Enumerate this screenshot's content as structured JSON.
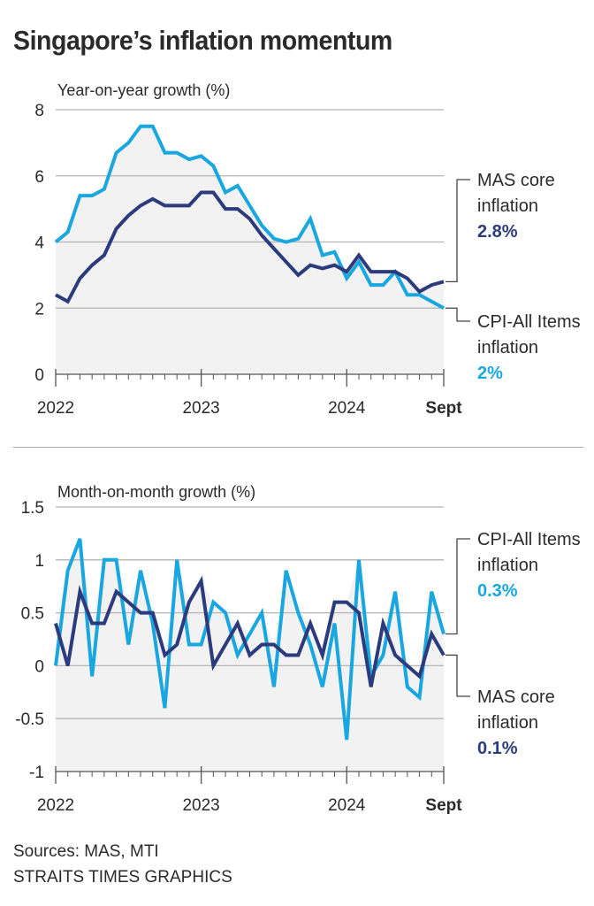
{
  "title": "Singapore’s inflation momentum",
  "colors": {
    "cpi": "#1aa7e0",
    "core": "#2c3b7c",
    "fill": "#f2f2f2",
    "grid": "#b5b5b5",
    "axis": "#555555"
  },
  "sources": {
    "line1": "Sources: MAS, MTI",
    "line2": "STRAITS TIMES GRAPHICS"
  },
  "chart_data": [
    {
      "type": "line",
      "title": "Year-on-year growth (%)",
      "ylabel": "Year-on-year growth (%)",
      "xlabel": "",
      "x_range": [
        "2022-01",
        "2024-09"
      ],
      "ylim": [
        0,
        8
      ],
      "yticks": [
        0,
        2,
        4,
        6,
        8
      ],
      "yticks_labels": [
        "0",
        "2",
        "4",
        "6",
        "8"
      ],
      "xtick_labels": [
        {
          "label": "2022",
          "month_index": 0,
          "bold": false
        },
        {
          "label": "2023",
          "month_index": 12,
          "bold": false
        },
        {
          "label": "2024",
          "month_index": 24,
          "bold": false
        },
        {
          "label": "Sept",
          "month_index": 32,
          "bold": true
        }
      ],
      "grid": true,
      "x": [
        "2022-01",
        "2022-02",
        "2022-03",
        "2022-04",
        "2022-05",
        "2022-06",
        "2022-07",
        "2022-08",
        "2022-09",
        "2022-10",
        "2022-11",
        "2022-12",
        "2023-01",
        "2023-02",
        "2023-03",
        "2023-04",
        "2023-05",
        "2023-06",
        "2023-07",
        "2023-08",
        "2023-09",
        "2023-10",
        "2023-11",
        "2023-12",
        "2024-01",
        "2024-02",
        "2024-03",
        "2024-04",
        "2024-05",
        "2024-06",
        "2024-07",
        "2024-08",
        "2024-09"
      ],
      "series": [
        {
          "name": "CPI-All Items inflation",
          "color_key": "cpi",
          "values": [
            4.0,
            4.3,
            5.4,
            5.4,
            5.6,
            6.7,
            7.0,
            7.5,
            7.5,
            6.7,
            6.7,
            6.5,
            6.6,
            6.3,
            5.5,
            5.7,
            5.1,
            4.5,
            4.1,
            4.0,
            4.1,
            4.7,
            3.6,
            3.7,
            2.9,
            3.4,
            2.7,
            2.7,
            3.1,
            2.4,
            2.4,
            2.2,
            2.0
          ],
          "label_line1": "CPI-All Items",
          "label_line2": "inflation",
          "label_value": "2%"
        },
        {
          "name": "MAS core inflation",
          "color_key": "core",
          "values": [
            2.4,
            2.2,
            2.9,
            3.3,
            3.6,
            4.4,
            4.8,
            5.1,
            5.3,
            5.1,
            5.1,
            5.1,
            5.5,
            5.5,
            5.0,
            5.0,
            4.7,
            4.2,
            3.8,
            3.4,
            3.0,
            3.3,
            3.2,
            3.3,
            3.1,
            3.6,
            3.1,
            3.1,
            3.1,
            2.9,
            2.5,
            2.7,
            2.8
          ],
          "label_line1": "MAS core",
          "label_line2": "inflation",
          "label_value": "2.8%"
        }
      ]
    },
    {
      "type": "line",
      "title": "Month-on-month growth (%)",
      "ylabel": "Month-on-month growth (%)",
      "xlabel": "",
      "x_range": [
        "2022-01",
        "2024-09"
      ],
      "ylim": [
        -1,
        1.5
      ],
      "yticks": [
        -1,
        -0.5,
        0,
        0.5,
        1,
        1.5
      ],
      "yticks_labels": [
        "-1",
        "-0.5",
        "0",
        "0.5",
        "1",
        "1.5"
      ],
      "xtick_labels": [
        {
          "label": "2022",
          "month_index": 0,
          "bold": false
        },
        {
          "label": "2023",
          "month_index": 12,
          "bold": false
        },
        {
          "label": "2024",
          "month_index": 24,
          "bold": false
        },
        {
          "label": "Sept",
          "month_index": 32,
          "bold": true
        }
      ],
      "grid": true,
      "x": [
        "2022-01",
        "2022-02",
        "2022-03",
        "2022-04",
        "2022-05",
        "2022-06",
        "2022-07",
        "2022-08",
        "2022-09",
        "2022-10",
        "2022-11",
        "2022-12",
        "2023-01",
        "2023-02",
        "2023-03",
        "2023-04",
        "2023-05",
        "2023-06",
        "2023-07",
        "2023-08",
        "2023-09",
        "2023-10",
        "2023-11",
        "2023-12",
        "2024-01",
        "2024-02",
        "2024-03",
        "2024-04",
        "2024-05",
        "2024-06",
        "2024-07",
        "2024-08",
        "2024-09"
      ],
      "series": [
        {
          "name": "CPI-All Items inflation",
          "color_key": "cpi",
          "values": [
            0.0,
            0.9,
            1.2,
            -0.1,
            1.0,
            1.0,
            0.2,
            0.9,
            0.4,
            -0.4,
            1.0,
            0.2,
            0.2,
            0.6,
            0.5,
            0.1,
            0.3,
            0.5,
            -0.2,
            0.9,
            0.5,
            0.2,
            -0.2,
            0.4,
            -0.7,
            1.0,
            -0.1,
            0.1,
            0.7,
            -0.2,
            -0.3,
            0.7,
            0.3
          ],
          "label_line1": "CPI-All Items",
          "label_line2": "inflation",
          "label_value": "0.3%"
        },
        {
          "name": "MAS core inflation",
          "color_key": "core",
          "values": [
            0.4,
            0.0,
            0.7,
            0.4,
            0.4,
            0.7,
            0.6,
            0.5,
            0.5,
            0.1,
            0.2,
            0.6,
            0.8,
            0.0,
            0.2,
            0.4,
            0.1,
            0.2,
            0.2,
            0.1,
            0.1,
            0.4,
            0.1,
            0.6,
            0.6,
            0.5,
            -0.2,
            0.4,
            0.1,
            0.0,
            -0.1,
            0.3,
            0.1
          ],
          "label_line1": "MAS core",
          "label_line2": "inflation",
          "label_value": "0.1%"
        }
      ]
    }
  ]
}
